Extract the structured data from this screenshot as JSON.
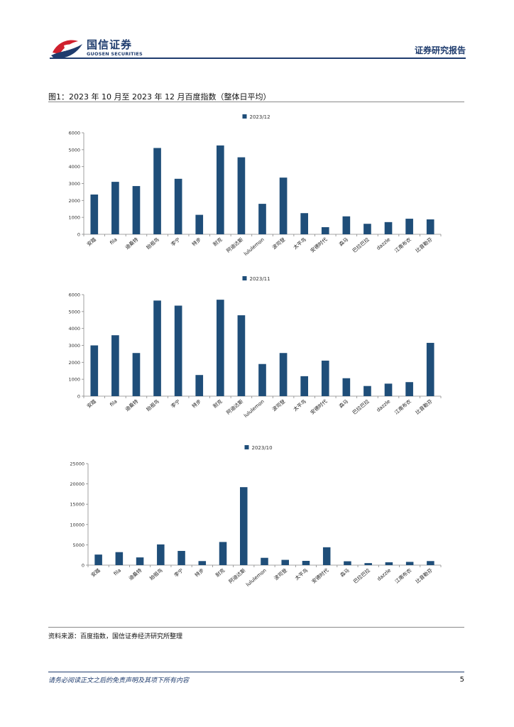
{
  "header": {
    "brand_cn": "国信证券",
    "brand_en": "GUOSEN SECURITIES",
    "report_type": "证券研究报告"
  },
  "figure": {
    "title": "图1：2023 年 10 月至 2023 年 12 月百度指数（整体日平均）"
  },
  "colors": {
    "bar": "#1f4e79",
    "brand": "#1f3c6e",
    "logo_red": "#d0202e"
  },
  "chart_data": [
    {
      "type": "bar",
      "legend_position": "top-center",
      "grid": false,
      "categories": [
        "安踏",
        "fila",
        "迪桑特",
        "始祖鸟",
        "李宁",
        "特步",
        "耐克",
        "阿迪达斯",
        "lululemon",
        "波司登",
        "太平鸟",
        "安德时代",
        "森马",
        "巴拉巴拉",
        "dazzle",
        "江南布衣",
        "比音勒芬"
      ],
      "series": [
        {
          "name": "2023/12",
          "values": [
            2350,
            3100,
            2850,
            5100,
            3280,
            1150,
            5250,
            4550,
            1800,
            3350,
            1250,
            420,
            1060,
            620,
            720,
            920,
            880
          ]
        }
      ],
      "ylim": [
        0,
        6000
      ],
      "yticks": [
        0,
        1000,
        2000,
        3000,
        4000,
        5000,
        6000
      ]
    },
    {
      "type": "bar",
      "legend_position": "top-center",
      "grid": false,
      "categories": [
        "安踏",
        "fila",
        "迪桑特",
        "始祖鸟",
        "李宁",
        "特步",
        "耐克",
        "阿迪达斯",
        "lululemon",
        "波司登",
        "太平鸟",
        "安德时代",
        "森马",
        "巴拉巴拉",
        "dazzle",
        "江南布衣",
        "比音勒芬"
      ],
      "series": [
        {
          "name": "2023/11",
          "values": [
            3000,
            3600,
            2550,
            5650,
            5350,
            1250,
            5700,
            4780,
            1900,
            2550,
            1180,
            2100,
            1060,
            600,
            740,
            830,
            3150
          ]
        }
      ],
      "ylim": [
        0,
        6000
      ],
      "yticks": [
        0,
        1000,
        2000,
        3000,
        4000,
        5000,
        6000
      ]
    },
    {
      "type": "bar",
      "legend_position": "top-center",
      "grid": false,
      "categories": [
        "安踏",
        "fila",
        "迪桑特",
        "始祖鸟",
        "李宁",
        "特步",
        "耐克",
        "阿迪达斯",
        "lululemon",
        "波司登",
        "太平鸟",
        "安德时代",
        "森马",
        "巴拉巴拉",
        "dazzle",
        "江南布衣",
        "比音勒芬"
      ],
      "series": [
        {
          "name": "2023/10",
          "values": [
            2600,
            3200,
            1900,
            5100,
            3500,
            1000,
            5700,
            19200,
            1800,
            1300,
            1050,
            4400,
            950,
            500,
            700,
            800,
            1000
          ]
        }
      ],
      "ylim": [
        0,
        25000
      ],
      "yticks": [
        0,
        5000,
        10000,
        15000,
        20000,
        25000
      ]
    }
  ],
  "footer": {
    "source": "资料来源：百度指数，国信证券经济研究所整理",
    "disclaimer": "请务必阅读正文之后的免责声明及其项下所有内容",
    "page": "5"
  }
}
